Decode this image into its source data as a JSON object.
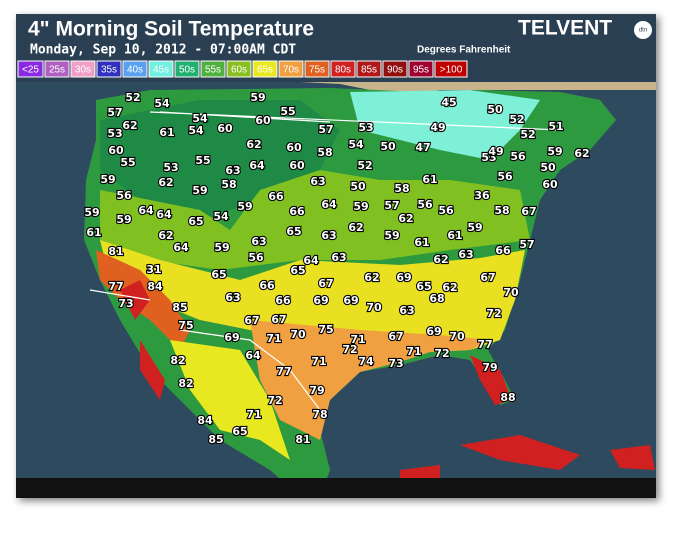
{
  "header": {
    "title": "4\" Morning Soil Temperature",
    "subtitle": "Monday, Sep 10, 2012 - 07:00AM CDT",
    "units": "Degrees Fahrenheit",
    "brand": "TELVENT",
    "brand_mark": "dtn"
  },
  "legend": [
    {
      "label": "<25",
      "color": "#8a2be2"
    },
    {
      "label": "25s",
      "color": "#b060c0"
    },
    {
      "label": "30s",
      "color": "#f0a0c8"
    },
    {
      "label": "35s",
      "color": "#3030c0"
    },
    {
      "label": "40s",
      "color": "#5aa0f0"
    },
    {
      "label": "45s",
      "color": "#70f0e0"
    },
    {
      "label": "50s",
      "color": "#20b070"
    },
    {
      "label": "55s",
      "color": "#50b040"
    },
    {
      "label": "60s",
      "color": "#88c020"
    },
    {
      "label": "65s",
      "color": "#e8e820"
    },
    {
      "label": "70s",
      "color": "#f0a040"
    },
    {
      "label": "75s",
      "color": "#e06020"
    },
    {
      "label": "80s",
      "color": "#d02020"
    },
    {
      "label": "85s",
      "color": "#b01818"
    },
    {
      "label": "90s",
      "color": "#901010"
    },
    {
      "label": "95s",
      "color": "#a00030"
    },
    {
      "label": ">100",
      "color": "#c00000"
    }
  ],
  "readings": [
    52,
    54,
    59,
    57,
    62,
    54,
    60,
    55,
    53,
    61,
    54,
    60,
    57,
    53,
    45,
    50,
    52,
    49,
    52,
    51,
    60,
    62,
    60,
    58,
    54,
    50,
    47,
    53,
    49,
    56,
    59,
    62,
    55,
    53,
    55,
    63,
    64,
    60,
    52,
    59,
    62,
    58,
    63,
    50,
    58,
    61,
    56,
    50,
    60,
    56,
    59,
    66,
    64,
    59,
    57,
    62,
    56,
    56,
    36,
    58,
    67,
    59,
    59,
    64,
    64,
    65,
    54,
    59,
    66,
    62,
    59,
    61,
    61,
    59,
    57,
    61,
    62,
    63,
    65,
    63,
    64,
    59,
    56,
    81,
    64,
    62,
    63,
    62,
    63,
    66,
    65,
    67,
    69,
    65,
    62,
    67,
    31,
    65,
    66,
    77,
    84,
    70,
    63,
    66,
    69,
    69,
    70,
    63,
    68,
    73,
    85,
    72,
    75,
    67,
    67,
    75,
    69,
    70,
    67,
    71,
    70,
    71,
    77,
    69,
    82,
    64,
    72,
    74,
    73,
    71,
    72,
    79,
    71,
    77,
    82,
    79,
    72,
    88,
    84,
    71,
    78,
    65,
    85,
    81
  ]
}
